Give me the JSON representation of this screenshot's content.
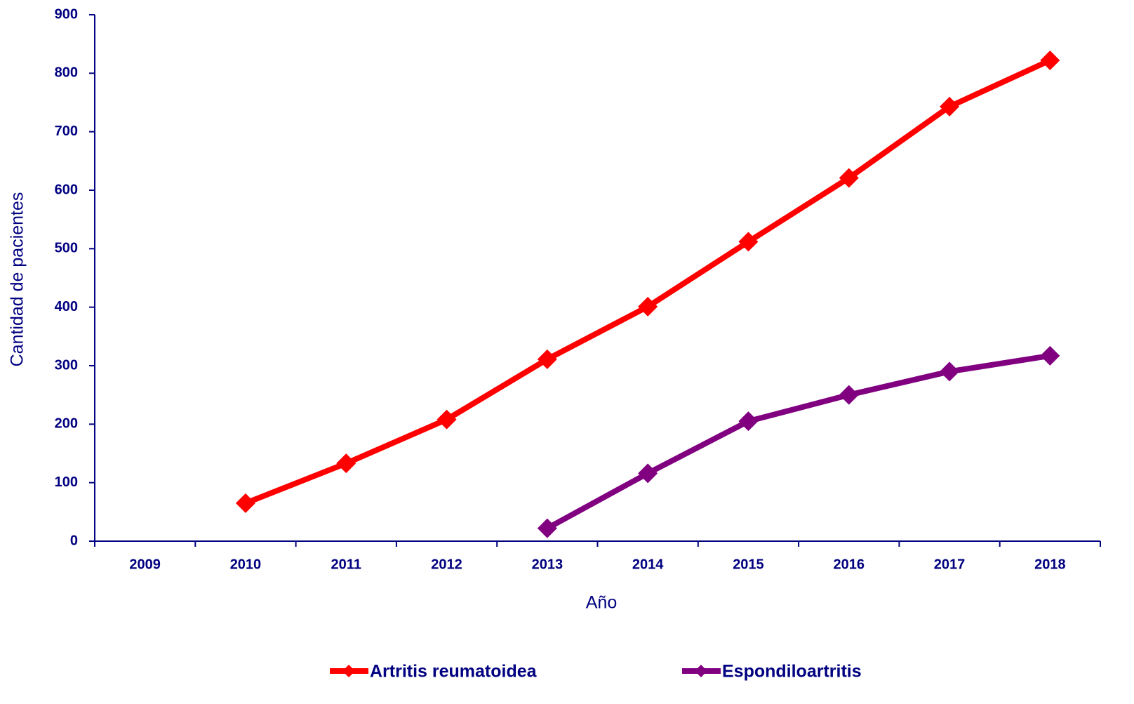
{
  "chart_data": {
    "type": "line",
    "y_label": "Cantidad de pacientes",
    "x_label": "Año",
    "categories": [
      "2009",
      "2010",
      "2011",
      "2012",
      "2013",
      "2014",
      "2015",
      "2016",
      "2017",
      "2018"
    ],
    "series": [
      {
        "name": "Artritis reumatoidea",
        "color": "#ff0000",
        "values": [
          null,
          65,
          133,
          208,
          311,
          401,
          512,
          621,
          743,
          822
        ]
      },
      {
        "name": "Espondiloartritis",
        "color": "#800080",
        "values": [
          null,
          null,
          null,
          null,
          22,
          116,
          205,
          250,
          290,
          317
        ]
      }
    ],
    "ylim": [
      0,
      900
    ],
    "yticks": [
      0,
      100,
      200,
      300,
      400,
      500,
      600,
      700,
      800,
      900
    ],
    "legend": "bottom"
  }
}
